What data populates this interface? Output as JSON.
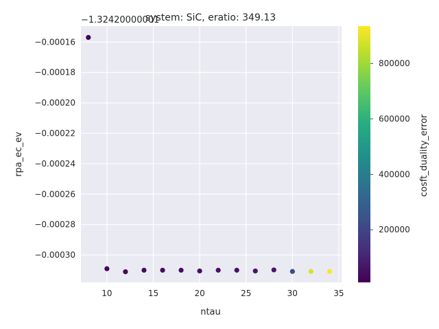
{
  "chart_data": {
    "type": "scatter",
    "title": "system: SiC, eratio: 349.13",
    "xlabel": "ntau",
    "ylabel": "rpa_ec_ev",
    "y_offset_label": "−1.32420000001",
    "xlim": [
      7.2,
      35.3
    ],
    "ylim": [
      -0.000318,
      -0.0001495
    ],
    "x_ticks": [
      10,
      15,
      20,
      25,
      30,
      35
    ],
    "x_tick_labels": [
      "10",
      "15",
      "20",
      "25",
      "30",
      "35"
    ],
    "y_ticks": [
      -0.00016,
      -0.00018,
      -0.0002,
      -0.00022,
      -0.00024,
      -0.00026,
      -0.00028,
      -0.0003
    ],
    "y_tick_labels": [
      "−0.00016",
      "−0.00018",
      "−0.00020",
      "−0.00022",
      "−0.00024",
      "−0.00026",
      "−0.00028",
      "−0.00030"
    ],
    "grid": true,
    "colorbar": {
      "label": "cosft_duality_error",
      "range": [
        10000,
        935000
      ],
      "ticks": [
        200000,
        400000,
        600000,
        800000
      ],
      "tick_labels": [
        "200000",
        "400000",
        "600000",
        "800000"
      ],
      "colormap": "viridis"
    },
    "points": [
      {
        "x": 8,
        "y": -0.000157,
        "c": 15000
      },
      {
        "x": 10,
        "y": -0.000309,
        "c": 20000
      },
      {
        "x": 12,
        "y": -0.000311,
        "c": 25000
      },
      {
        "x": 14,
        "y": -0.00031,
        "c": 30000
      },
      {
        "x": 16,
        "y": -0.00031,
        "c": 35000
      },
      {
        "x": 18,
        "y": -0.00031,
        "c": 40000
      },
      {
        "x": 20,
        "y": -0.0003105,
        "c": 45000
      },
      {
        "x": 22,
        "y": -0.00031,
        "c": 50000
      },
      {
        "x": 24,
        "y": -0.00031,
        "c": 55000
      },
      {
        "x": 26,
        "y": -0.0003105,
        "c": 60000
      },
      {
        "x": 28,
        "y": -0.0003098,
        "c": 65000
      },
      {
        "x": 30,
        "y": -0.0003108,
        "c": 220000
      },
      {
        "x": 32,
        "y": -0.0003108,
        "c": 880000
      },
      {
        "x": 34,
        "y": -0.0003108,
        "c": 930000
      }
    ]
  },
  "colors": {
    "plot_background": "#eaeaf2",
    "grid": "#ffffff",
    "text": "#262626",
    "viridis_stops": [
      "#440154",
      "#472d7b",
      "#3b528b",
      "#2c728e",
      "#21918c",
      "#28ae80",
      "#5ec962",
      "#addc30",
      "#fde725"
    ]
  }
}
